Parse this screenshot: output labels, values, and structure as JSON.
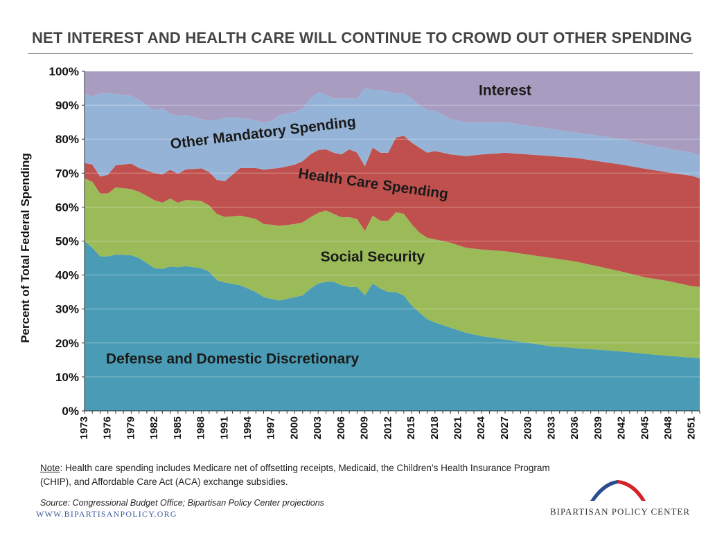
{
  "title": "NET INTEREST AND HEALTH CARE WILL CONTINUE TO CROWD OUT OTHER SPENDING",
  "note": {
    "label": "Note",
    "text": ": Health care spending includes Medicare net of offsetting receipts, Medicaid, the Children’s Health Insurance Program (CHIP), and Affordable Care Act (ACA) exchange subsidies."
  },
  "source": "Source: Congressional Budget Office; Bipartisan Policy Center projections",
  "website": "WWW.BIPARTISANPOLICY.ORG",
  "organization": "BIPARTISAN POLICY CENTER",
  "logo_colors": {
    "blue": "#2a4d8f",
    "red": "#d2232a"
  },
  "chart_data": {
    "type": "area",
    "stacked": true,
    "ylabel": "Percent of Total Federal Spending",
    "ylim": [
      0,
      100
    ],
    "yticks": [
      "0%",
      "10%",
      "20%",
      "30%",
      "40%",
      "50%",
      "60%",
      "70%",
      "80%",
      "90%",
      "100%"
    ],
    "x_start": 1973,
    "x_end": 2052,
    "xtick_labels": [
      "1973",
      "1976",
      "1979",
      "1982",
      "1985",
      "1988",
      "1991",
      "1994",
      "1997",
      "2000",
      "2003",
      "2006",
      "2009",
      "2012",
      "2015",
      "2018",
      "2021",
      "2024",
      "2027",
      "2030",
      "2033",
      "2036",
      "2039",
      "2042",
      "2045",
      "2048",
      "2051"
    ],
    "grid": true,
    "series": [
      {
        "name": "Defense and Domestic Discretionary",
        "color": "#4a9bb5",
        "label_pos": {
          "year": 1992,
          "value": 14
        },
        "points": [
          [
            1973,
            50
          ],
          [
            1974,
            48
          ],
          [
            1975,
            45.5
          ],
          [
            1976,
            45.5
          ],
          [
            1977,
            46
          ],
          [
            1979,
            45.8
          ],
          [
            1980,
            45
          ],
          [
            1982,
            42
          ],
          [
            1983,
            41.8
          ],
          [
            1984,
            42.5
          ],
          [
            1985,
            42.3
          ],
          [
            1986,
            42.6
          ],
          [
            1988,
            42
          ],
          [
            1989,
            41
          ],
          [
            1990,
            38.5
          ],
          [
            1991,
            37.8
          ],
          [
            1993,
            37
          ],
          [
            1995,
            35
          ],
          [
            1996,
            33.5
          ],
          [
            1997,
            33
          ],
          [
            1998,
            32.5
          ],
          [
            2000,
            33.5
          ],
          [
            2001,
            34
          ],
          [
            2002,
            36
          ],
          [
            2003,
            37.5
          ],
          [
            2004,
            38
          ],
          [
            2005,
            38
          ],
          [
            2006,
            37
          ],
          [
            2007,
            36.5
          ],
          [
            2008,
            36.5
          ],
          [
            2009,
            34
          ],
          [
            2010,
            37.5
          ],
          [
            2011,
            36
          ],
          [
            2012,
            35
          ],
          [
            2013,
            35
          ],
          [
            2014,
            34
          ],
          [
            2015,
            31
          ],
          [
            2016,
            29
          ],
          [
            2017,
            27
          ],
          [
            2018,
            26
          ],
          [
            2020,
            24.5
          ],
          [
            2022,
            23
          ],
          [
            2024,
            22
          ],
          [
            2027,
            21
          ],
          [
            2030,
            20
          ],
          [
            2033,
            19
          ],
          [
            2036,
            18.5
          ],
          [
            2039,
            18
          ],
          [
            2042,
            17.5
          ],
          [
            2045,
            16.8
          ],
          [
            2048,
            16.2
          ],
          [
            2051,
            15.7
          ],
          [
            2052,
            15.5
          ]
        ]
      },
      {
        "name": "Social Security",
        "color": "#9bbb59",
        "label_pos": {
          "year": 2010,
          "value": 44
        },
        "points": [
          [
            1973,
            18.5
          ],
          [
            1974,
            19.5
          ],
          [
            1975,
            18.5
          ],
          [
            1976,
            18.5
          ],
          [
            1977,
            19.8
          ],
          [
            1979,
            19.5
          ],
          [
            1980,
            19.5
          ],
          [
            1982,
            20
          ],
          [
            1983,
            19.5
          ],
          [
            1984,
            20
          ],
          [
            1985,
            19
          ],
          [
            1986,
            19.5
          ],
          [
            1988,
            19.8
          ],
          [
            1989,
            19.5
          ],
          [
            1990,
            19.5
          ],
          [
            1991,
            19.3
          ],
          [
            1993,
            20.5
          ],
          [
            1995,
            21.5
          ],
          [
            1996,
            21.5
          ],
          [
            1997,
            21.8
          ],
          [
            1998,
            22
          ],
          [
            2000,
            21.5
          ],
          [
            2001,
            21.5
          ],
          [
            2002,
            21
          ],
          [
            2003,
            20.8
          ],
          [
            2004,
            21
          ],
          [
            2005,
            20
          ],
          [
            2006,
            20
          ],
          [
            2007,
            20.5
          ],
          [
            2008,
            20
          ],
          [
            2009,
            19
          ],
          [
            2010,
            20
          ],
          [
            2011,
            20
          ],
          [
            2012,
            21
          ],
          [
            2013,
            23.5
          ],
          [
            2014,
            24
          ],
          [
            2015,
            24
          ],
          [
            2016,
            23.5
          ],
          [
            2017,
            24
          ],
          [
            2018,
            24.5
          ],
          [
            2020,
            25
          ],
          [
            2022,
            25
          ],
          [
            2024,
            25.5
          ],
          [
            2027,
            26
          ],
          [
            2030,
            26
          ],
          [
            2033,
            26
          ],
          [
            2036,
            25.5
          ],
          [
            2039,
            24.5
          ],
          [
            2042,
            23.5
          ],
          [
            2045,
            22.5
          ],
          [
            2048,
            22
          ],
          [
            2051,
            21
          ],
          [
            2052,
            21
          ]
        ]
      },
      {
        "name": "Health Care Spending",
        "color": "#c0504d",
        "label_pos": {
          "year": 2010,
          "value": 65.5
        },
        "label_rotate": 8,
        "points": [
          [
            1973,
            4.5
          ],
          [
            1974,
            5
          ],
          [
            1975,
            5
          ],
          [
            1976,
            5.5
          ],
          [
            1977,
            6.5
          ],
          [
            1979,
            7.5
          ],
          [
            1980,
            7
          ],
          [
            1982,
            8
          ],
          [
            1983,
            8.3
          ],
          [
            1984,
            8.5
          ],
          [
            1985,
            8.5
          ],
          [
            1986,
            9
          ],
          [
            1988,
            9.6
          ],
          [
            1989,
            9.8
          ],
          [
            1990,
            10
          ],
          [
            1991,
            10.5
          ],
          [
            1993,
            14
          ],
          [
            1995,
            15
          ],
          [
            1996,
            16
          ],
          [
            1997,
            16.5
          ],
          [
            1998,
            17
          ],
          [
            2000,
            17.5
          ],
          [
            2001,
            18
          ],
          [
            2002,
            18.5
          ],
          [
            2003,
            18.5
          ],
          [
            2004,
            18
          ],
          [
            2005,
            18
          ],
          [
            2006,
            18.5
          ],
          [
            2007,
            20
          ],
          [
            2008,
            19.5
          ],
          [
            2009,
            19
          ],
          [
            2010,
            20
          ],
          [
            2011,
            20
          ],
          [
            2012,
            20
          ],
          [
            2013,
            22
          ],
          [
            2014,
            23
          ],
          [
            2015,
            24
          ],
          [
            2016,
            25
          ],
          [
            2017,
            25
          ],
          [
            2018,
            26
          ],
          [
            2020,
            26
          ],
          [
            2022,
            27
          ],
          [
            2024,
            28
          ],
          [
            2027,
            29
          ],
          [
            2030,
            29.5
          ],
          [
            2033,
            30
          ],
          [
            2036,
            30.5
          ],
          [
            2039,
            31
          ],
          [
            2042,
            31.5
          ],
          [
            2045,
            32
          ],
          [
            2048,
            32
          ],
          [
            2051,
            32.5
          ],
          [
            2052,
            32
          ]
        ]
      },
      {
        "name": "Other Mandatory Spending",
        "color": "#95b3d7",
        "label_pos": {
          "year": 1996,
          "value": 80.5
        },
        "label_rotate": -7,
        "points": [
          [
            1973,
            20.5
          ],
          [
            1974,
            20
          ],
          [
            1975,
            24.5
          ],
          [
            1976,
            24
          ],
          [
            1977,
            21
          ],
          [
            1979,
            20
          ],
          [
            1980,
            20
          ],
          [
            1982,
            18.5
          ],
          [
            1983,
            19.5
          ],
          [
            1984,
            16.5
          ],
          [
            1985,
            17
          ],
          [
            1986,
            16
          ],
          [
            1988,
            14.5
          ],
          [
            1989,
            15.3
          ],
          [
            1990,
            17.7
          ],
          [
            1991,
            18.7
          ],
          [
            1993,
            14.8
          ],
          [
            1995,
            14
          ],
          [
            1996,
            14
          ],
          [
            1997,
            14
          ],
          [
            1998,
            15.5
          ],
          [
            2000,
            15.5
          ],
          [
            2001,
            15.5
          ],
          [
            2002,
            16.5
          ],
          [
            2003,
            17
          ],
          [
            2004,
            16
          ],
          [
            2005,
            16
          ],
          [
            2006,
            16.5
          ],
          [
            2007,
            15
          ],
          [
            2008,
            16
          ],
          [
            2009,
            23
          ],
          [
            2010,
            17
          ],
          [
            2011,
            18.5
          ],
          [
            2012,
            18
          ],
          [
            2013,
            13
          ],
          [
            2014,
            12.5
          ],
          [
            2015,
            13
          ],
          [
            2016,
            12.5
          ],
          [
            2017,
            12.5
          ],
          [
            2018,
            12
          ],
          [
            2020,
            10.5
          ],
          [
            2022,
            10
          ],
          [
            2024,
            9.5
          ],
          [
            2027,
            9
          ],
          [
            2030,
            8.5
          ],
          [
            2033,
            8
          ],
          [
            2036,
            7.5
          ],
          [
            2039,
            7.5
          ],
          [
            2042,
            7.5
          ],
          [
            2045,
            7.2
          ],
          [
            2048,
            7
          ],
          [
            2051,
            6.8
          ],
          [
            2052,
            6.5
          ]
        ]
      },
      {
        "name": "Interest",
        "color": "#a89cc0",
        "label_pos": {
          "year": 2027,
          "value": 93
        },
        "points": [
          [
            1973,
            6.5
          ],
          [
            1974,
            7.5
          ],
          [
            1975,
            6.5
          ],
          [
            1976,
            6.5
          ],
          [
            1977,
            6.7
          ],
          [
            1979,
            7.2
          ],
          [
            1980,
            8.5
          ],
          [
            1982,
            11.5
          ],
          [
            1983,
            10.9
          ],
          [
            1984,
            12.5
          ],
          [
            1985,
            13.2
          ],
          [
            1986,
            12.9
          ],
          [
            1988,
            14.1
          ],
          [
            1989,
            14.4
          ],
          [
            1990,
            14.3
          ],
          [
            1991,
            13.7
          ],
          [
            1993,
            13.7
          ],
          [
            1995,
            14.5
          ],
          [
            1996,
            15
          ],
          [
            1997,
            14.7
          ],
          [
            1998,
            13
          ],
          [
            2000,
            12
          ],
          [
            2001,
            11
          ],
          [
            2002,
            8
          ],
          [
            2003,
            6.2
          ],
          [
            2004,
            7
          ],
          [
            2005,
            8
          ],
          [
            2006,
            8
          ],
          [
            2007,
            8
          ],
          [
            2008,
            8
          ],
          [
            2009,
            5
          ],
          [
            2010,
            5.5
          ],
          [
            2011,
            5.5
          ],
          [
            2012,
            6
          ],
          [
            2013,
            6.5
          ],
          [
            2014,
            6.5
          ],
          [
            2015,
            8
          ],
          [
            2016,
            10
          ],
          [
            2017,
            11.5
          ],
          [
            2018,
            11.5
          ],
          [
            2020,
            14
          ],
          [
            2022,
            15
          ],
          [
            2024,
            15
          ],
          [
            2027,
            15
          ],
          [
            2030,
            16
          ],
          [
            2033,
            17
          ],
          [
            2036,
            18
          ],
          [
            2039,
            19
          ],
          [
            2042,
            20
          ],
          [
            2045,
            21.5
          ],
          [
            2048,
            22.8
          ],
          [
            2051,
            24
          ],
          [
            2052,
            25
          ]
        ]
      }
    ]
  }
}
